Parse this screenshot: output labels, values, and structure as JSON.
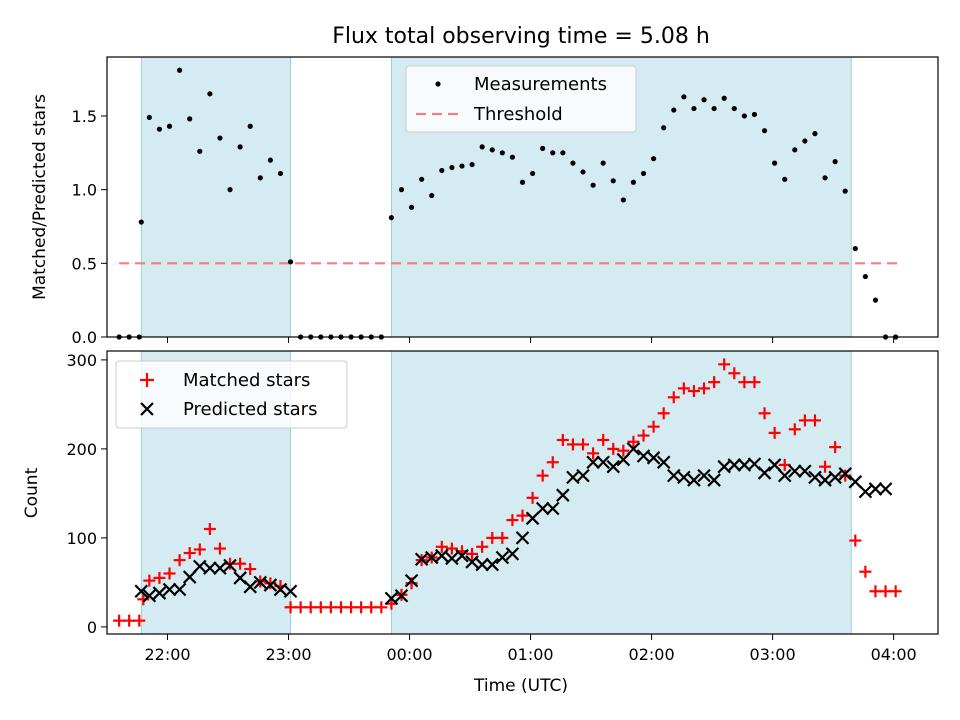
{
  "chart_data": [
    {
      "type": "scatter",
      "title": "Flux total observing time = 5.08 h",
      "xlabel": "",
      "ylabel": "Matched/Predicted stars",
      "xlim": [
        "21:30",
        "04:22"
      ],
      "ylim": [
        0,
        1.9
      ],
      "yticks": [
        0,
        0.5,
        1.0,
        1.5
      ],
      "ytick_labels": [
        "0.0",
        "0.5",
        "1.0",
        "1.5"
      ],
      "shaded_intervals": [
        [
          "21:47",
          "23:01"
        ],
        [
          "23:51",
          "03:39"
        ]
      ],
      "shade_color": "#add8e6",
      "legend_position": "top-center",
      "threshold": {
        "name": "Threshold",
        "value": 0.5,
        "x_range": [
          "21:36",
          "04:02"
        ],
        "color": "#f08080"
      },
      "series": [
        {
          "name": "Measurements",
          "color": "#000000",
          "x": [
            "21:36",
            "21:41",
            "21:46",
            "21:47",
            "21:51",
            "21:56",
            "22:01",
            "22:06",
            "22:11",
            "22:16",
            "22:21",
            "22:26",
            "22:31",
            "22:36",
            "22:41",
            "22:46",
            "22:51",
            "22:56",
            "23:01",
            "23:06",
            "23:11",
            "23:16",
            "23:21",
            "23:26",
            "23:31",
            "23:36",
            "23:41",
            "23:46",
            "23:51",
            "23:56",
            "00:01",
            "00:06",
            "00:11",
            "00:16",
            "00:21",
            "00:26",
            "00:31",
            "00:36",
            "00:41",
            "00:46",
            "00:51",
            "00:56",
            "01:01",
            "01:06",
            "01:11",
            "01:16",
            "01:21",
            "01:26",
            "01:31",
            "01:36",
            "01:41",
            "01:46",
            "01:51",
            "01:56",
            "02:01",
            "02:06",
            "02:11",
            "02:16",
            "02:21",
            "02:26",
            "02:31",
            "02:36",
            "02:41",
            "02:46",
            "02:51",
            "02:56",
            "03:01",
            "03:06",
            "03:11",
            "03:16",
            "03:21",
            "03:26",
            "03:31",
            "03:36",
            "03:41",
            "03:46",
            "03:51",
            "03:56",
            "04:01"
          ],
          "y": [
            0,
            0,
            0,
            0.78,
            1.49,
            1.41,
            1.43,
            1.81,
            1.48,
            1.26,
            1.65,
            1.35,
            1.0,
            1.29,
            1.43,
            1.08,
            1.2,
            1.11,
            0.51,
            0,
            0,
            0,
            0,
            0,
            0,
            0,
            0,
            0,
            0.81,
            1.0,
            0.88,
            1.07,
            0.96,
            1.13,
            1.15,
            1.16,
            1.17,
            1.29,
            1.27,
            1.25,
            1.22,
            1.05,
            1.11,
            1.28,
            1.25,
            1.25,
            1.18,
            1.12,
            1.03,
            1.18,
            1.06,
            0.93,
            1.05,
            1.11,
            1.21,
            1.42,
            1.54,
            1.63,
            1.55,
            1.61,
            1.55,
            1.62,
            1.55,
            1.5,
            1.51,
            1.4,
            1.18,
            1.07,
            1.27,
            1.33,
            1.38,
            1.08,
            1.19,
            0.99,
            0.6,
            0.41,
            0.25,
            0,
            0
          ]
        }
      ]
    },
    {
      "type": "scatter",
      "title": "",
      "xlabel": "Time (UTC)",
      "ylabel": "Count",
      "xlim": [
        "21:30",
        "04:22"
      ],
      "ylim": [
        -8,
        310
      ],
      "yticks": [
        0,
        100,
        200,
        300
      ],
      "ytick_labels": [
        "0",
        "100",
        "200",
        "300"
      ],
      "xtick_labels": [
        "22:00",
        "23:00",
        "00:00",
        "01:00",
        "02:00",
        "03:00",
        "04:00"
      ],
      "shaded_intervals": [
        [
          "21:47",
          "23:01"
        ],
        [
          "23:51",
          "03:39"
        ]
      ],
      "shade_color": "#add8e6",
      "legend_position": "top-left",
      "series": [
        {
          "name": "Matched stars",
          "marker": "+",
          "color": "#ff0000",
          "x": [
            "21:36",
            "21:41",
            "21:46",
            "21:48",
            "21:51",
            "21:56",
            "22:01",
            "22:06",
            "22:11",
            "22:16",
            "22:21",
            "22:26",
            "22:31",
            "22:36",
            "22:41",
            "22:46",
            "22:51",
            "22:56",
            "23:01",
            "23:06",
            "23:11",
            "23:16",
            "23:21",
            "23:26",
            "23:31",
            "23:36",
            "23:41",
            "23:46",
            "23:51",
            "23:56",
            "00:01",
            "00:06",
            "00:11",
            "00:16",
            "00:21",
            "00:26",
            "00:31",
            "00:36",
            "00:41",
            "00:46",
            "00:51",
            "00:56",
            "01:01",
            "01:06",
            "01:11",
            "01:16",
            "01:21",
            "01:26",
            "01:31",
            "01:36",
            "01:41",
            "01:46",
            "01:51",
            "01:56",
            "02:01",
            "02:06",
            "02:11",
            "02:16",
            "02:21",
            "02:26",
            "02:31",
            "02:36",
            "02:41",
            "02:46",
            "02:51",
            "02:56",
            "03:01",
            "03:06",
            "03:11",
            "03:16",
            "03:21",
            "03:26",
            "03:31",
            "03:36",
            "03:41",
            "03:46",
            "03:51",
            "03:56",
            "04:01"
          ],
          "y": [
            7,
            7,
            7,
            31,
            52,
            55,
            60,
            75,
            83,
            87,
            110,
            88,
            71,
            71,
            65,
            51,
            49,
            46,
            22,
            22,
            22,
            22,
            22,
            22,
            22,
            22,
            22,
            22,
            26,
            36,
            49,
            75,
            78,
            90,
            88,
            85,
            82,
            90,
            100,
            100,
            120,
            125,
            145,
            170,
            185,
            210,
            205,
            205,
            195,
            210,
            200,
            198,
            208,
            215,
            225,
            240,
            258,
            268,
            265,
            268,
            275,
            295,
            285,
            275,
            275,
            240,
            218,
            182,
            222,
            232,
            232,
            180,
            202,
            170,
            97,
            62,
            40,
            40,
            40
          ]
        },
        {
          "name": "Predicted stars",
          "marker": "x",
          "color": "#000000",
          "x": [
            "21:47",
            "21:51",
            "21:56",
            "22:01",
            "22:06",
            "22:11",
            "22:16",
            "22:21",
            "22:26",
            "22:31",
            "22:36",
            "22:41",
            "22:46",
            "22:51",
            "22:56",
            "23:01",
            "23:51",
            "23:56",
            "00:01",
            "00:06",
            "00:11",
            "00:16",
            "00:21",
            "00:26",
            "00:31",
            "00:36",
            "00:41",
            "00:46",
            "00:51",
            "00:56",
            "01:01",
            "01:06",
            "01:11",
            "01:16",
            "01:21",
            "01:26",
            "01:31",
            "01:36",
            "01:41",
            "01:46",
            "01:51",
            "01:56",
            "02:01",
            "02:06",
            "02:11",
            "02:16",
            "02:21",
            "02:26",
            "02:31",
            "02:36",
            "02:41",
            "02:46",
            "02:51",
            "02:56",
            "03:01",
            "03:06",
            "03:11",
            "03:16",
            "03:21",
            "03:26",
            "03:31",
            "03:36",
            "03:41",
            "03:46",
            "03:51",
            "03:56"
          ],
          "y": [
            40,
            35,
            38,
            42,
            42,
            56,
            68,
            66,
            66,
            69,
            55,
            45,
            50,
            47,
            42,
            40,
            32,
            35,
            52,
            76,
            78,
            80,
            77,
            80,
            73,
            70,
            70,
            78,
            82,
            100,
            122,
            133,
            133,
            148,
            168,
            170,
            185,
            185,
            180,
            188,
            200,
            192,
            190,
            185,
            170,
            168,
            165,
            170,
            165,
            180,
            182,
            182,
            183,
            173,
            182,
            170,
            175,
            175,
            168,
            165,
            168,
            172,
            163,
            152,
            155,
            155
          ]
        }
      ]
    }
  ]
}
